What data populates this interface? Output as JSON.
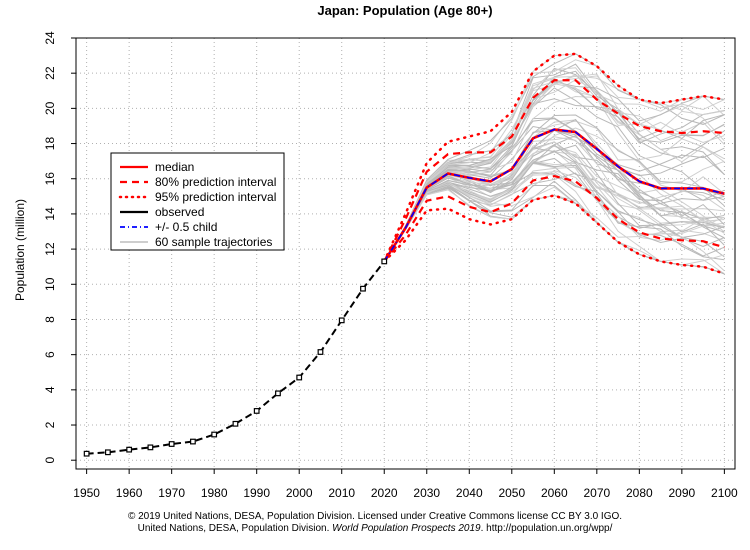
{
  "chart_data": {
    "type": "line",
    "title": "Japan: Population (Age 80+)",
    "xlabel": "",
    "ylabel": "Population (million)",
    "xlim": [
      1947.5,
      2102.5
    ],
    "ylim": [
      -0.5,
      24
    ],
    "x_ticks": [
      1950,
      1960,
      1970,
      1980,
      1990,
      2000,
      2010,
      2020,
      2030,
      2040,
      2050,
      2060,
      2070,
      2080,
      2090,
      2100
    ],
    "y_ticks": [
      0,
      2,
      4,
      6,
      8,
      10,
      12,
      14,
      16,
      18,
      20,
      22,
      24
    ],
    "grid": true,
    "legend_position": "left",
    "legend": [
      {
        "label": "median",
        "color": "#ff0000",
        "style": "solid"
      },
      {
        "label": "80% prediction interval",
        "color": "#ff0000",
        "style": "dashed"
      },
      {
        "label": "95% prediction interval",
        "color": "#ff0000",
        "style": "dotted"
      },
      {
        "label": "observed",
        "color": "#000000",
        "style": "solid"
      },
      {
        "label": "+/- 0.5 child",
        "color": "#0000ff",
        "style": "dashdot"
      },
      {
        "label": "60 sample trajectories",
        "color": "#bebebe",
        "style": "solid"
      }
    ],
    "series": [
      {
        "name": "observed",
        "x": [
          1950,
          1955,
          1960,
          1965,
          1970,
          1975,
          1980,
          1985,
          1990,
          1995,
          2000,
          2005,
          2010,
          2015,
          2020
        ],
        "values": [
          0.37,
          0.45,
          0.6,
          0.73,
          0.92,
          1.06,
          1.46,
          2.07,
          2.8,
          3.8,
          4.7,
          6.15,
          7.95,
          9.75,
          11.3
        ]
      },
      {
        "name": "median",
        "x": [
          2020,
          2025,
          2030,
          2035,
          2040,
          2045,
          2050,
          2055,
          2060,
          2065,
          2070,
          2075,
          2080,
          2085,
          2090,
          2095,
          2100
        ],
        "values": [
          11.3,
          13.2,
          15.5,
          16.3,
          16.05,
          15.85,
          16.55,
          18.3,
          18.8,
          18.65,
          17.7,
          16.7,
          15.85,
          15.45,
          15.45,
          15.45,
          15.15
        ]
      },
      {
        "name": "+/- 0.5 child",
        "x": [
          2020,
          2025,
          2030,
          2035,
          2040,
          2045,
          2050,
          2055,
          2060,
          2065,
          2070,
          2075,
          2080,
          2085,
          2090,
          2095,
          2100
        ],
        "values": [
          11.3,
          13.2,
          15.5,
          16.3,
          16.05,
          15.85,
          16.55,
          18.3,
          18.8,
          18.65,
          17.7,
          16.7,
          15.85,
          15.45,
          15.45,
          15.45,
          15.15
        ]
      },
      {
        "name": "80% prediction interval upper",
        "x": [
          2020,
          2025,
          2030,
          2035,
          2040,
          2045,
          2050,
          2055,
          2060,
          2065,
          2070,
          2075,
          2080,
          2085,
          2090,
          2095,
          2100
        ],
        "values": [
          11.3,
          13.7,
          16.4,
          17.4,
          17.5,
          17.5,
          18.4,
          20.6,
          21.6,
          21.6,
          20.5,
          19.7,
          19.0,
          18.7,
          18.6,
          18.7,
          18.6
        ]
      },
      {
        "name": "80% prediction interval lower",
        "x": [
          2020,
          2025,
          2030,
          2035,
          2040,
          2045,
          2050,
          2055,
          2060,
          2065,
          2070,
          2075,
          2080,
          2085,
          2090,
          2095,
          2100
        ],
        "values": [
          11.3,
          12.8,
          14.75,
          15.0,
          14.4,
          14.1,
          14.6,
          15.9,
          16.15,
          15.85,
          14.9,
          13.7,
          12.95,
          12.6,
          12.5,
          12.45,
          12.1
        ]
      },
      {
        "name": "95% prediction interval upper",
        "x": [
          2020,
          2025,
          2030,
          2035,
          2040,
          2045,
          2050,
          2055,
          2060,
          2065,
          2070,
          2075,
          2080,
          2085,
          2090,
          2095,
          2100
        ],
        "values": [
          11.3,
          14.0,
          16.9,
          18.1,
          18.4,
          18.7,
          19.8,
          22.1,
          23.0,
          23.1,
          22.4,
          21.3,
          20.5,
          20.3,
          20.5,
          20.7,
          20.5
        ]
      },
      {
        "name": "95% prediction interval lower",
        "x": [
          2020,
          2025,
          2030,
          2035,
          2040,
          2045,
          2050,
          2055,
          2060,
          2065,
          2070,
          2075,
          2080,
          2085,
          2090,
          2095,
          2100
        ],
        "values": [
          11.3,
          12.5,
          14.2,
          14.3,
          13.7,
          13.4,
          13.7,
          14.8,
          15.05,
          14.6,
          13.5,
          12.4,
          11.7,
          11.3,
          11.1,
          11.0,
          10.6
        ]
      }
    ]
  },
  "footer": {
    "line1": "© 2019 United Nations, DESA, Population Division. Licensed under Creative Commons license CC BY 3.0 IGO.",
    "line2_prefix": "United Nations, DESA, Population Division. ",
    "line2_italic": "World Population Prospects 2019",
    "line2_suffix": ". http://population.un.org/wpp/"
  }
}
